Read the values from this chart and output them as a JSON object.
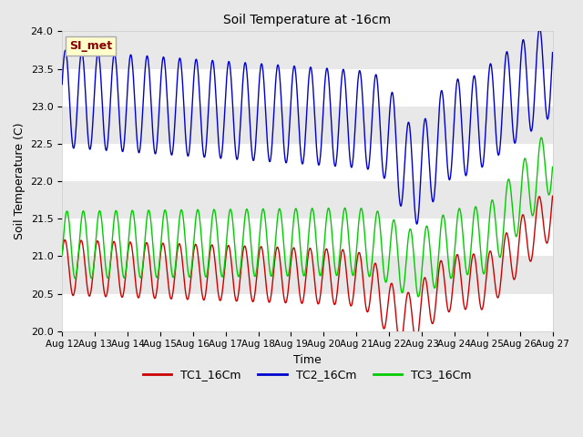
{
  "title": "Soil Temperature at -16cm",
  "xlabel": "Time",
  "ylabel": "Soil Temperature (C)",
  "ylim": [
    20.0,
    24.0
  ],
  "yticks": [
    20.0,
    20.5,
    21.0,
    21.5,
    22.0,
    22.5,
    23.0,
    23.5,
    24.0
  ],
  "xtick_labels": [
    "Aug 12",
    "Aug 13",
    "Aug 14",
    "Aug 15",
    "Aug 16",
    "Aug 17",
    "Aug 18",
    "Aug 19",
    "Aug 20",
    "Aug 21",
    "Aug 22",
    "Aug 23",
    "Aug 24",
    "Aug 25",
    "Aug 26",
    "Aug 27"
  ],
  "n_days": 15,
  "annotation_text": "SI_met",
  "annotation_bg": "#ffffcc",
  "annotation_border": "#aaaaaa",
  "fig_bg": "#e8e8e8",
  "plot_bg": "#f0f0f0",
  "band_colors": [
    "#ffffff",
    "#e8e8e8"
  ],
  "legend_colors": [
    "#cc0000",
    "#0000cc",
    "#00cc00"
  ],
  "legend_labels": [
    "TC1_16Cm",
    "TC2_16Cm",
    "TC3_16Cm"
  ],
  "linewidth": 1.0
}
